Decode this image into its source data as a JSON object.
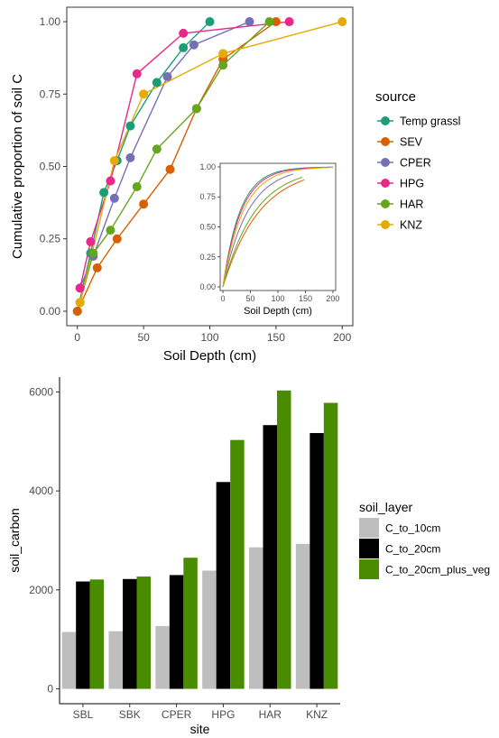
{
  "chart_data": [
    {
      "type": "line",
      "title": "",
      "xlabel": "Soil Depth (cm)",
      "ylabel": "Cumulative proportion of soil C",
      "xlim": [
        -8,
        208
      ],
      "ylim": [
        -0.05,
        1.05
      ],
      "xticks": [
        "0",
        "50",
        "100",
        "150",
        "200"
      ],
      "yticks": [
        "0.00",
        "0.25",
        "0.50",
        "0.75",
        "1.00"
      ],
      "grid": false,
      "legend": {
        "title": "source",
        "position": "right"
      },
      "series": [
        {
          "name": "Temp grassl",
          "color": "#1b9e77",
          "points": [
            [
              0,
              0
            ],
            [
              10,
              0.2
            ],
            [
              20,
              0.41
            ],
            [
              30,
              0.52
            ],
            [
              40,
              0.64
            ],
            [
              60,
              0.79
            ],
            [
              80,
              0.91
            ],
            [
              100,
              1.0
            ]
          ]
        },
        {
          "name": "SEV",
          "color": "#d95f02",
          "points": [
            [
              0,
              0
            ],
            [
              15,
              0.15
            ],
            [
              30,
              0.25
            ],
            [
              50,
              0.37
            ],
            [
              70,
              0.49
            ],
            [
              90,
              0.7
            ],
            [
              110,
              0.87
            ],
            [
              150,
              1.0
            ]
          ]
        },
        {
          "name": "CPER",
          "color": "#7570b3",
          "points": [
            [
              2,
              0.08
            ],
            [
              12,
              0.19
            ],
            [
              28,
              0.39
            ],
            [
              40,
              0.53
            ],
            [
              68,
              0.81
            ],
            [
              88,
              0.92
            ],
            [
              130,
              1.0
            ]
          ]
        },
        {
          "name": "HPG",
          "color": "#e7298a",
          "points": [
            [
              2,
              0.08
            ],
            [
              10,
              0.24
            ],
            [
              25,
              0.45
            ],
            [
              45,
              0.82
            ],
            [
              80,
              0.96
            ],
            [
              160,
              1.0
            ]
          ]
        },
        {
          "name": "HAR",
          "color": "#66a61e",
          "points": [
            [
              2,
              0.03
            ],
            [
              12,
              0.2
            ],
            [
              25,
              0.28
            ],
            [
              45,
              0.43
            ],
            [
              60,
              0.56
            ],
            [
              90,
              0.7
            ],
            [
              110,
              0.85
            ],
            [
              145,
              1.0
            ]
          ]
        },
        {
          "name": "KNZ",
          "color": "#e6ab02",
          "points": [
            [
              2,
              0.03
            ],
            [
              28,
              0.52
            ],
            [
              50,
              0.75
            ],
            [
              110,
              0.89
            ],
            [
              200,
              1.0
            ]
          ]
        }
      ],
      "inset": {
        "xlabel": "Soil Depth (cm)",
        "xlim": [
          -5,
          205
        ],
        "ylim": [
          -0.03,
          1.03
        ],
        "xticks": [
          "0",
          "50",
          "100",
          "150",
          "200"
        ],
        "yticks": [
          "0.00",
          "0.25",
          "0.50",
          "0.75",
          "1.00"
        ],
        "curves": [
          {
            "color": "#1b9e77",
            "k": 0.032,
            "xmax": 200
          },
          {
            "color": "#d95f02",
            "k": 0.015,
            "xmax": 150
          },
          {
            "color": "#7570b3",
            "k": 0.022,
            "xmax": 130
          },
          {
            "color": "#e7298a",
            "k": 0.03,
            "xmax": 200
          },
          {
            "color": "#66a61e",
            "k": 0.017,
            "xmax": 145
          },
          {
            "color": "#e6ab02",
            "k": 0.027,
            "xmax": 200
          }
        ]
      }
    },
    {
      "type": "bar",
      "title": "",
      "xlabel": "site",
      "ylabel": "soil_carbon",
      "categories": [
        "SBL",
        "SBK",
        "CPER",
        "HPG",
        "HAR",
        "KNZ"
      ],
      "ylim": [
        -300,
        6300
      ],
      "yticks": [
        0,
        2000,
        4000,
        6000
      ],
      "grid": false,
      "legend": {
        "title": "soil_layer",
        "position": "right"
      },
      "series": [
        {
          "name": "C_to_10cm",
          "color": "#bebebe",
          "values": [
            1150,
            1165,
            1270,
            2390,
            2860,
            2930
          ]
        },
        {
          "name": "C_to_20cm",
          "color": "#000000",
          "values": [
            2170,
            2220,
            2300,
            4180,
            5330,
            5170
          ]
        },
        {
          "name": "C_to_20cm_plus_veg",
          "color": "#4a8c00",
          "values": [
            2210,
            2270,
            2650,
            5030,
            6030,
            5780
          ]
        }
      ]
    }
  ]
}
